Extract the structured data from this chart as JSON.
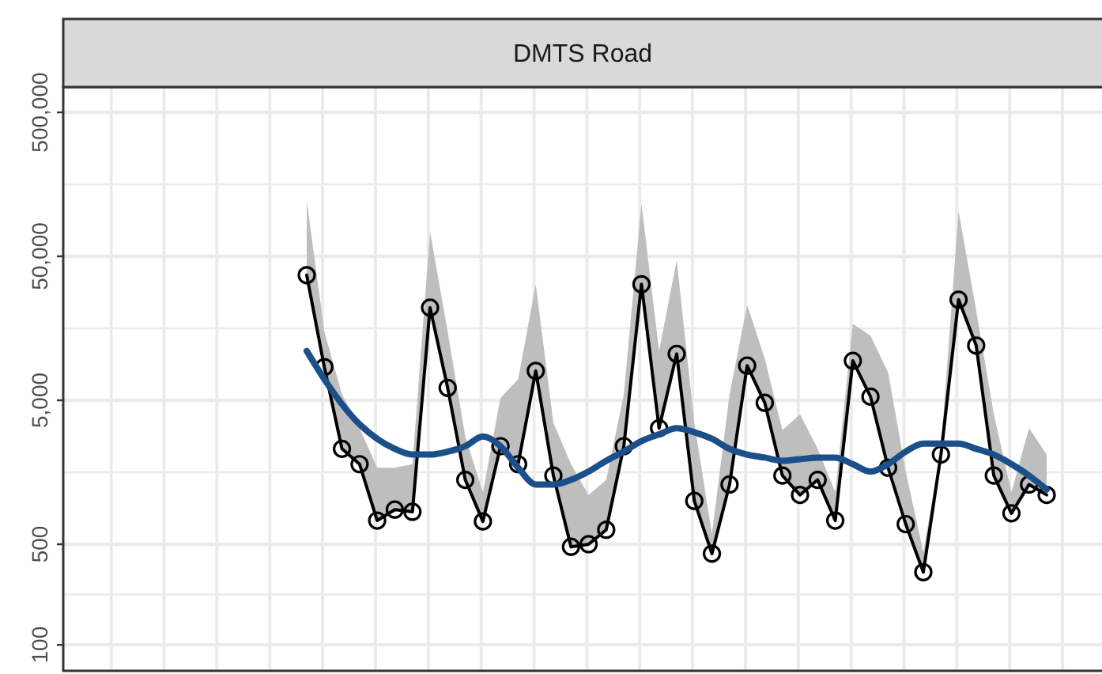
{
  "chart_data": {
    "type": "line",
    "title": "DMTS Road",
    "log": "y",
    "grid": true,
    "tick_labels": "y",
    "marker": "circle",
    "line_style": "solid",
    "categories": [
      null,
      null,
      null,
      null,
      null,
      null,
      null,
      null,
      null,
      null,
      null,
      null,
      null,
      null,
      null,
      null,
      null,
      null,
      null,
      null,
      null,
      null,
      null,
      null,
      null,
      null,
      null,
      null,
      null,
      null,
      null,
      null,
      null,
      null,
      null,
      null,
      null,
      null,
      null,
      null,
      null,
      null,
      null
    ],
    "ylim": [
      66,
      750000
    ],
    "yticks": [
      100,
      500,
      {
        "value": 5000,
        "label": "5,000"
      },
      {
        "value": 50000,
        "label": "50,000"
      },
      {
        "value": 500000,
        "label": "500,000"
      }
    ],
    "series": [
      {
        "color": "#000000",
        "values": [
          37000,
          8500,
          2300,
          1800,
          730,
          870,
          840,
          22000,
          6100,
          1400,
          720,
          2400,
          1800,
          8000,
          1500,
          480,
          500,
          630,
          2400,
          32000,
          3200,
          10500,
          1000,
          430,
          1300,
          8700,
          4800,
          1500,
          1100,
          1400,
          730,
          9400,
          5300,
          1700,
          690,
          320,
          2100,
          25000,
          12000,
          1500,
          820,
          1300,
          1100
        ],
        "lower": [
          37000,
          8500,
          2300,
          1800,
          730,
          870,
          840,
          22000,
          6100,
          1400,
          720,
          2400,
          1800,
          8000,
          1500,
          480,
          500,
          630,
          2400,
          32000,
          3200,
          10500,
          1000,
          430,
          1300,
          8700,
          4800,
          1500,
          1100,
          1400,
          730,
          9400,
          5300,
          1700,
          690,
          320,
          2100,
          25000,
          12000,
          1500,
          820,
          1300,
          1100
        ],
        "upper": [
          122000,
          15000,
          5500,
          3200,
          1700,
          1700,
          1800,
          74000,
          15000,
          2800,
          1150,
          5200,
          7000,
          32000,
          3500,
          1800,
          1100,
          1400,
          5500,
          116000,
          11000,
          47000,
          3500,
          590,
          5500,
          23000,
          9700,
          3100,
          4000,
          2300,
          1150,
          17000,
          14000,
          7800,
          1600,
          440,
          2300,
          103000,
          21000,
          4000,
          1150,
          3200,
          2100
        ]
      },
      {
        "color": "#1b4f8a",
        "marker": "none",
        "values": [
          11000,
          7000,
          4700,
          3400,
          2700,
          2300,
          2100,
          2100,
          2200,
          2400,
          2800,
          2400,
          1700,
          1300,
          1300,
          1400,
          1600,
          1900,
          2200,
          2600,
          2900,
          3200,
          3000,
          2700,
          2300,
          2100,
          2000,
          1900,
          1950,
          2000,
          2000,
          1800,
          1600,
          1800,
          2200,
          2500,
          2500,
          2500,
          2300,
          2100,
          1800,
          1500,
          1200
        ]
      }
    ]
  }
}
